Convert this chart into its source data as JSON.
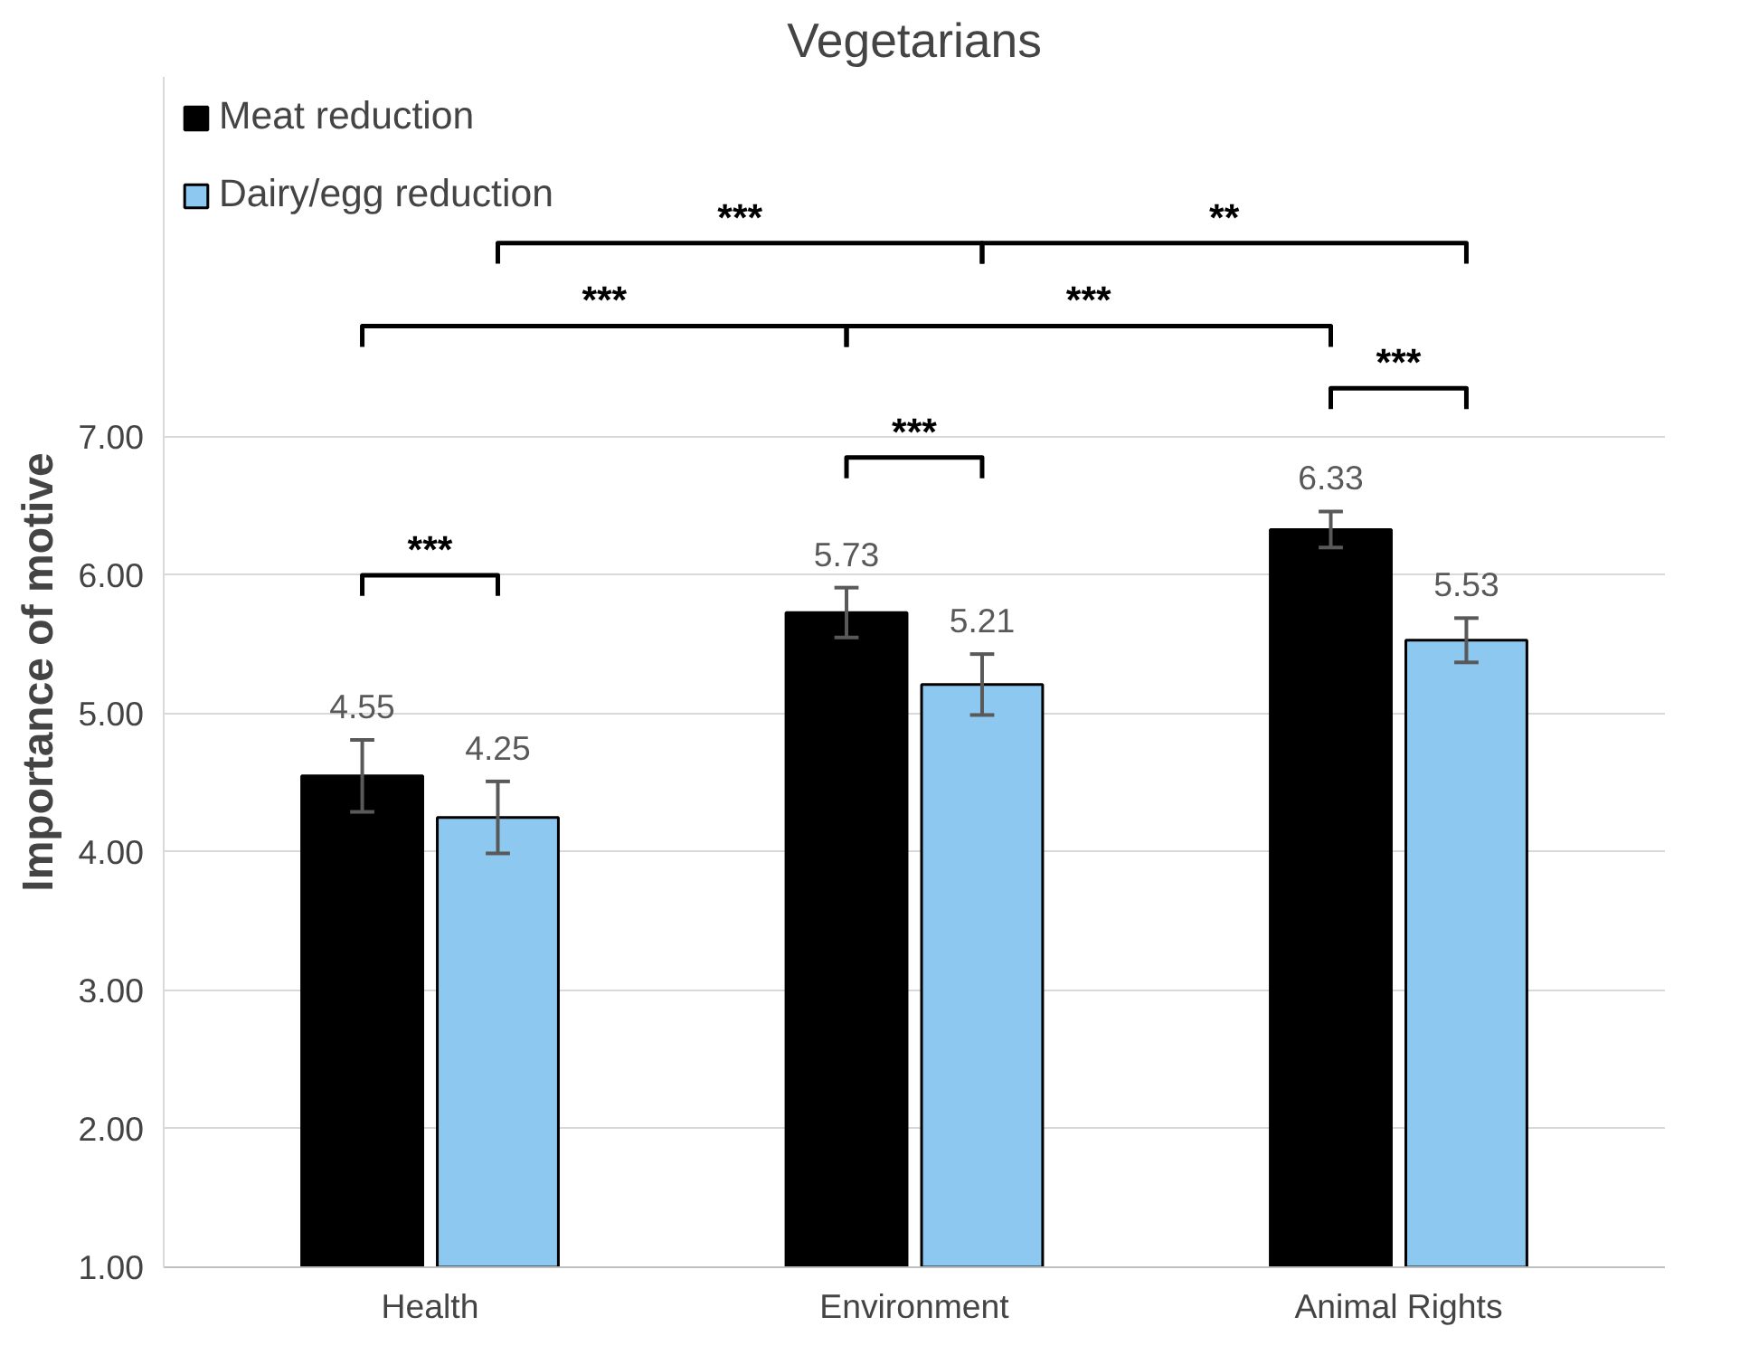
{
  "chart_data": {
    "type": "bar",
    "title": "Vegetarians",
    "ylabel": "Importance of motive",
    "categories": [
      "Health",
      "Environment",
      "Animal Rights"
    ],
    "series": [
      {
        "name": "Meat reduction",
        "color": "#000000",
        "values": [
          4.55,
          5.73,
          6.33
        ],
        "errors": [
          0.26,
          0.18,
          0.13
        ]
      },
      {
        "name": "Dairy/egg reduction",
        "color": "#8cc8f0",
        "values": [
          4.25,
          5.21,
          5.53
        ],
        "errors": [
          0.26,
          0.22,
          0.16
        ]
      }
    ],
    "ylim": [
      1,
      9.6
    ],
    "yticks": [
      {
        "value": 1,
        "label": "1.00"
      },
      {
        "value": 2,
        "label": "2.00"
      },
      {
        "value": 3,
        "label": "3.00"
      },
      {
        "value": 4,
        "label": "4.00"
      },
      {
        "value": 5,
        "label": "5.00"
      },
      {
        "value": 6,
        "label": "6.00"
      },
      {
        "value": 7,
        "label": "7.00"
      }
    ],
    "grid": "y",
    "legend": "top left",
    "data_labels": true,
    "annotations": [
      "***",
      "***",
      "***",
      "***",
      "***",
      "***",
      "**"
    ]
  }
}
